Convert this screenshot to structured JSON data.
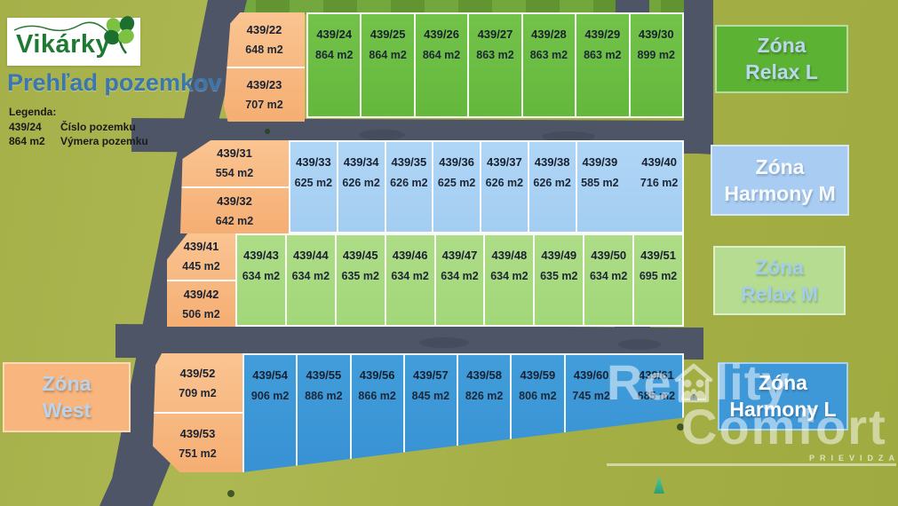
{
  "header": {
    "brand": "Vikárky",
    "title": "Prehľad pozemkov",
    "legend": {
      "heading": "Legenda:",
      "rows": [
        {
          "sample": "439/24",
          "label": "Číslo pozemku"
        },
        {
          "sample": "864 m2",
          "label": "Výmera pozemku"
        }
      ]
    }
  },
  "zones": {
    "relax_l": {
      "lines": [
        "Zóna",
        "Relax L"
      ],
      "color": "#5cb233"
    },
    "harmony_m": {
      "lines": [
        "Zóna",
        "Harmony M"
      ],
      "color": "#a9cdf2"
    },
    "relax_m": {
      "lines": [
        "Zóna",
        "Relax M"
      ],
      "color": "#b5dc90"
    },
    "west": {
      "lines": [
        "Zóna",
        "West"
      ],
      "color": "#f9b57e"
    },
    "harmony_l": {
      "lines": [
        "Zóna",
        "Harmony L"
      ],
      "color": "#3e98d8"
    }
  },
  "plots": {
    "west_top": [
      {
        "num": "439/22",
        "area": "648 m2"
      },
      {
        "num": "439/23",
        "area": "707 m2"
      }
    ],
    "relax_l": [
      {
        "num": "439/24",
        "area": "864 m2"
      },
      {
        "num": "439/25",
        "area": "864 m2"
      },
      {
        "num": "439/26",
        "area": "864 m2"
      },
      {
        "num": "439/27",
        "area": "863 m2"
      },
      {
        "num": "439/28",
        "area": "863 m2"
      },
      {
        "num": "439/29",
        "area": "863 m2"
      },
      {
        "num": "439/30",
        "area": "899 m2"
      }
    ],
    "west_mid1": [
      {
        "num": "439/31",
        "area": "554 m2"
      },
      {
        "num": "439/32",
        "area": "642 m2"
      }
    ],
    "harmony_m": [
      {
        "num": "439/33",
        "area": "625 m2"
      },
      {
        "num": "439/34",
        "area": "626 m2"
      },
      {
        "num": "439/35",
        "area": "626 m2"
      },
      {
        "num": "439/36",
        "area": "625 m2"
      },
      {
        "num": "439/37",
        "area": "626 m2"
      },
      {
        "num": "439/38",
        "area": "626 m2"
      },
      {
        "num": "439/39",
        "area": "585 m2"
      },
      {
        "num": "439/40",
        "area": "716 m2"
      }
    ],
    "west_mid2": [
      {
        "num": "439/41",
        "area": "445 m2"
      },
      {
        "num": "439/42",
        "area": "506 m2"
      }
    ],
    "relax_m": [
      {
        "num": "439/43",
        "area": "634 m2"
      },
      {
        "num": "439/44",
        "area": "634 m2"
      },
      {
        "num": "439/45",
        "area": "635 m2"
      },
      {
        "num": "439/46",
        "area": "634 m2"
      },
      {
        "num": "439/47",
        "area": "634 m2"
      },
      {
        "num": "439/48",
        "area": "634 m2"
      },
      {
        "num": "439/49",
        "area": "635 m2"
      },
      {
        "num": "439/50",
        "area": "634 m2"
      },
      {
        "num": "439/51",
        "area": "695 m2"
      }
    ],
    "west_bottom": [
      {
        "num": "439/52",
        "area": "709 m2"
      },
      {
        "num": "439/53",
        "area": "751 m2"
      }
    ],
    "harmony_l": [
      {
        "num": "439/54",
        "area": "906 m2"
      },
      {
        "num": "439/55",
        "area": "886 m2"
      },
      {
        "num": "439/56",
        "area": "866 m2"
      },
      {
        "num": "439/57",
        "area": "845 m2"
      },
      {
        "num": "439/58",
        "area": "826 m2"
      },
      {
        "num": "439/59",
        "area": "806 m2"
      },
      {
        "num": "439/60",
        "area": "745 m2"
      },
      {
        "num": "439/61",
        "area": "685 m2"
      }
    ]
  },
  "watermark": {
    "line1_pre": "Re",
    "line1_post": "lity",
    "line2": "Comfort",
    "sub": "PRIEVIDZA"
  },
  "colors": {
    "grass": "#a6b049",
    "road": "#4d5566",
    "plot_orange": "#f8b983",
    "plot_green_bright": "#6abd42",
    "plot_blue_light": "#a9d2f4",
    "plot_green_light": "#a9da81",
    "plot_blue_strong": "#3d97d9",
    "brand_green": "#1d7a31",
    "title_blue": "#3b76ae"
  }
}
